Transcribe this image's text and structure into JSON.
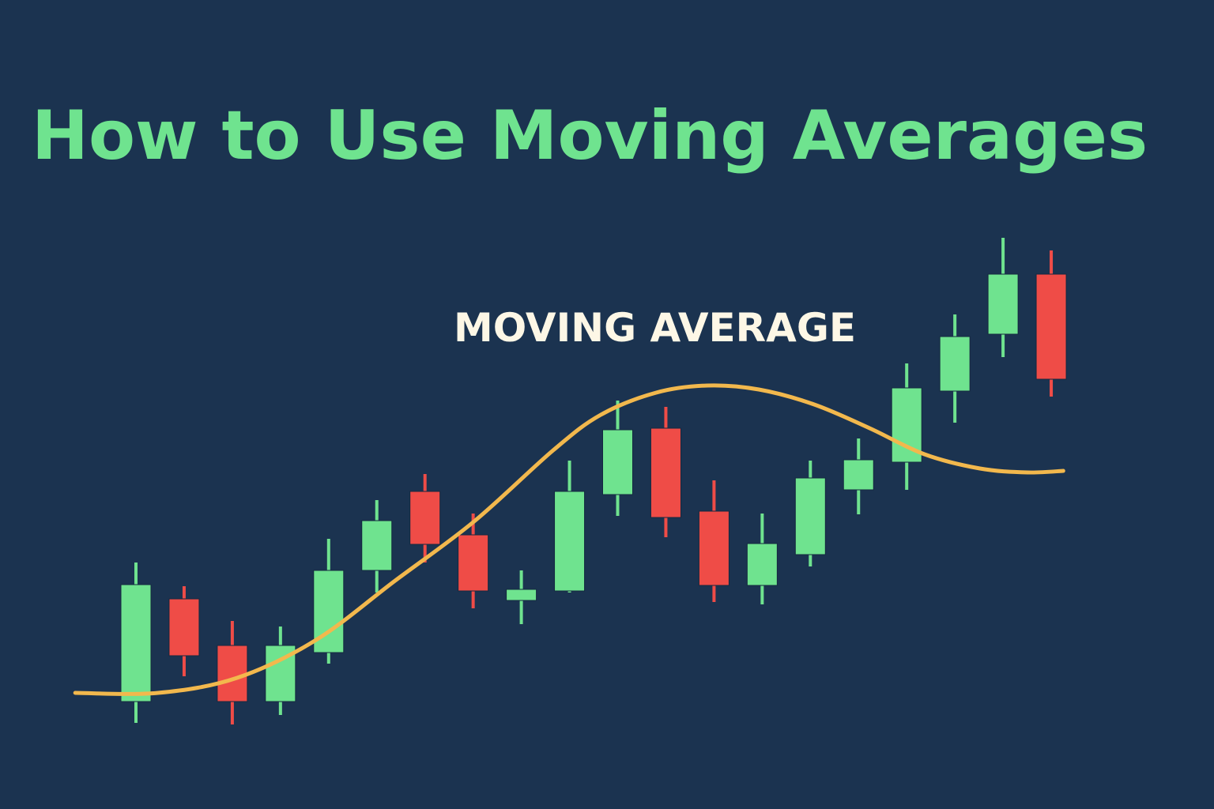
{
  "chart_data": {
    "type": "candlestick",
    "title": "How to Use Moving Averages",
    "annotation": "MOVING AVERAGE",
    "grid": false,
    "axes_visible": false,
    "colors": {
      "background": "#1b3350",
      "up": "#6fe38f",
      "down": "#ef4c47",
      "moving_average": "#f2b84d",
      "title": "#6fe38f",
      "annotation": "#fdf7e6"
    },
    "candles": [
      {
        "o": 13.6,
        "h": 31.2,
        "l": 10.9,
        "c": 28.4
      },
      {
        "o": 26.6,
        "h": 28.2,
        "l": 16.8,
        "c": 19.4
      },
      {
        "o": 20.7,
        "h": 23.8,
        "l": 10.7,
        "c": 13.6
      },
      {
        "o": 13.6,
        "h": 23.1,
        "l": 11.9,
        "c": 20.7
      },
      {
        "o": 19.8,
        "h": 34.2,
        "l": 18.4,
        "c": 30.2
      },
      {
        "o": 30.2,
        "h": 39.1,
        "l": 27.4,
        "c": 36.5
      },
      {
        "o": 40.2,
        "h": 42.4,
        "l": 31.2,
        "c": 33.5
      },
      {
        "o": 34.7,
        "h": 37.4,
        "l": 25.4,
        "c": 27.6
      },
      {
        "o": 26.4,
        "h": 30.2,
        "l": 23.4,
        "c": 27.8
      },
      {
        "o": 27.6,
        "h": 44.1,
        "l": 27.4,
        "c": 40.2
      },
      {
        "o": 39.8,
        "h": 51.7,
        "l": 37.1,
        "c": 48.0
      },
      {
        "o": 48.2,
        "h": 50.9,
        "l": 34.4,
        "c": 36.9
      },
      {
        "o": 37.7,
        "h": 41.6,
        "l": 26.2,
        "c": 28.3
      },
      {
        "o": 28.3,
        "h": 37.4,
        "l": 25.9,
        "c": 33.6
      },
      {
        "o": 32.2,
        "h": 44.1,
        "l": 30.7,
        "c": 41.9
      },
      {
        "o": 40.4,
        "h": 46.9,
        "l": 37.3,
        "c": 44.2
      },
      {
        "o": 43.9,
        "h": 56.4,
        "l": 40.4,
        "c": 53.3
      },
      {
        "o": 52.9,
        "h": 62.6,
        "l": 48.9,
        "c": 59.8
      },
      {
        "o": 60.1,
        "h": 72.3,
        "l": 57.2,
        "c": 67.7
      },
      {
        "o": 67.7,
        "h": 70.7,
        "l": 52.2,
        "c": 54.4
      }
    ],
    "moving_average": {
      "x": [
        -1.26,
        0.46,
        2.1,
        3.74,
        5.38,
        7.02,
        8.66,
        9.65,
        10.8,
        11.86,
        12.93,
        14.08,
        15.23,
        16.37,
        17.52,
        18.51,
        19.25
      ],
      "y": [
        14.7,
        14.7,
        16.6,
        21.4,
        28.9,
        36.4,
        45.4,
        49.9,
        52.7,
        53.6,
        53.1,
        51.2,
        48.2,
        44.9,
        43.1,
        42.6,
        42.8
      ]
    }
  }
}
